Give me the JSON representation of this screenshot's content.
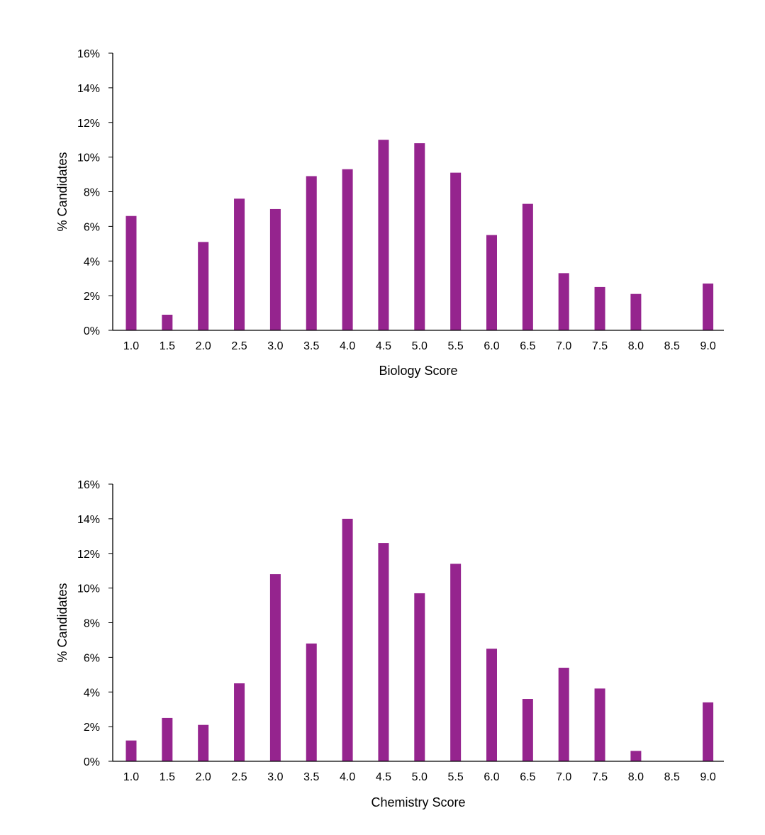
{
  "chart_data": [
    {
      "type": "bar",
      "title": "",
      "xlabel": "Biology Score",
      "ylabel": "% Candidates",
      "categories": [
        "1.0",
        "1.5",
        "2.0",
        "2.5",
        "3.0",
        "3.5",
        "4.0",
        "4.5",
        "5.0",
        "5.5",
        "6.0",
        "6.5",
        "7.0",
        "7.5",
        "8.0",
        "8.5",
        "9.0"
      ],
      "values": [
        6.6,
        0.9,
        5.1,
        7.6,
        7.0,
        8.9,
        9.3,
        11.0,
        10.8,
        9.1,
        5.5,
        7.3,
        3.3,
        2.5,
        2.1,
        0,
        2.7
      ],
      "yticks": [
        "0%",
        "2%",
        "4%",
        "6%",
        "8%",
        "10%",
        "12%",
        "14%",
        "16%"
      ],
      "ylim": [
        0,
        16
      ],
      "color": "#95248e",
      "grid": false,
      "legend": "none"
    },
    {
      "type": "bar",
      "title": "",
      "xlabel": "Chemistry Score",
      "ylabel": "% Candidates",
      "categories": [
        "1.0",
        "1.5",
        "2.0",
        "2.5",
        "3.0",
        "3.5",
        "4.0",
        "4.5",
        "5.0",
        "5.5",
        "6.0",
        "6.5",
        "7.0",
        "7.5",
        "8.0",
        "8.5",
        "9.0"
      ],
      "values": [
        1.2,
        2.5,
        2.1,
        4.5,
        10.8,
        6.8,
        14.0,
        12.6,
        9.7,
        11.4,
        6.5,
        3.6,
        5.4,
        4.2,
        0.6,
        0,
        3.4
      ],
      "yticks": [
        "0%",
        "2%",
        "4%",
        "6%",
        "8%",
        "10%",
        "12%",
        "14%",
        "16%"
      ],
      "ylim": [
        0,
        16
      ],
      "color": "#95248e",
      "grid": false,
      "legend": "none"
    }
  ]
}
